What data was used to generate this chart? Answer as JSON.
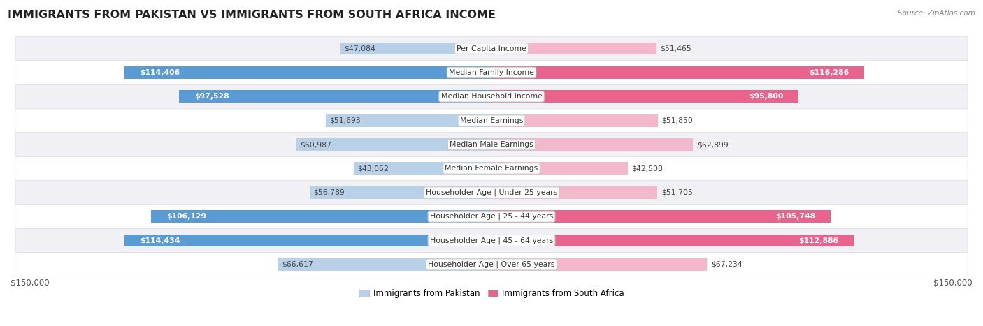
{
  "title": "IMMIGRANTS FROM PAKISTAN VS IMMIGRANTS FROM SOUTH AFRICA INCOME",
  "source": "Source: ZipAtlas.com",
  "categories": [
    "Per Capita Income",
    "Median Family Income",
    "Median Household Income",
    "Median Earnings",
    "Median Male Earnings",
    "Median Female Earnings",
    "Householder Age | Under 25 years",
    "Householder Age | 25 - 44 years",
    "Householder Age | 45 - 64 years",
    "Householder Age | Over 65 years"
  ],
  "pakistan_values": [
    47084,
    114406,
    97528,
    51693,
    60987,
    43052,
    56789,
    106129,
    114434,
    66617
  ],
  "southafrica_values": [
    51465,
    116286,
    95800,
    51850,
    62899,
    42508,
    51705,
    105748,
    112886,
    67234
  ],
  "pakistan_labels": [
    "$47,084",
    "$114,406",
    "$97,528",
    "$51,693",
    "$60,987",
    "$43,052",
    "$56,789",
    "$106,129",
    "$114,434",
    "$66,617"
  ],
  "southafrica_labels": [
    "$51,465",
    "$116,286",
    "$95,800",
    "$51,850",
    "$62,899",
    "$42,508",
    "$51,705",
    "$105,748",
    "$112,886",
    "$67,234"
  ],
  "max_value": 150000,
  "pakistan_color_light": "#b8d0e8",
  "pakistan_color_dark": "#5b9bd5",
  "southafrica_color_light": "#f4b8cc",
  "southafrica_color_dark": "#e8648c",
  "dark_threshold": 80000,
  "legend_pakistan": "Immigrants from Pakistan",
  "legend_southafrica": "Immigrants from South Africa",
  "bar_height": 0.52,
  "row_bg_odd": "#f0f0f5",
  "row_bg_even": "#ffffff",
  "axis_label": "$150,000",
  "title_fontsize": 11.5,
  "source_fontsize": 7.5,
  "legend_fontsize": 8.5,
  "category_fontsize": 7.8,
  "value_fontsize": 7.8
}
